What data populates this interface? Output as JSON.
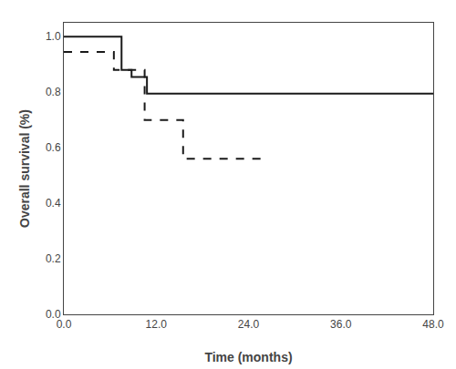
{
  "chart_data": {
    "type": "step",
    "xlabel": "Time (months)",
    "ylabel": "Overall survival (%)",
    "xlim": [
      0.0,
      48.0
    ],
    "ylim": [
      0.0,
      1.05
    ],
    "xticks": [
      {
        "value": 0.0,
        "label": "0.0"
      },
      {
        "value": 12.0,
        "label": "12.0"
      },
      {
        "value": 24.0,
        "label": "24.0"
      },
      {
        "value": 36.0,
        "label": "36.0"
      },
      {
        "value": 48.0,
        "label": "48.0"
      }
    ],
    "yticks": [
      {
        "value": 0.0,
        "label": "0.0"
      },
      0.2,
      0.4,
      0.6,
      0.8,
      {
        "value": 1.0,
        "label": "1.0"
      }
    ],
    "grid": false,
    "series": [
      {
        "color": "#1a1a1a",
        "line_style": "solid",
        "x": [
          0.0,
          7.5,
          7.5,
          8.8,
          8.8,
          10.8,
          10.8,
          48.0
        ],
        "values": [
          1.0,
          1.0,
          0.88,
          0.88,
          0.855,
          0.855,
          0.795,
          0.795
        ]
      },
      {
        "color": "#1a1a1a",
        "line_style": "dashed",
        "x": [
          0.0,
          6.5,
          6.5,
          10.5,
          10.5,
          15.5,
          15.5,
          26.0
        ],
        "values": [
          0.945,
          0.945,
          0.88,
          0.88,
          0.7,
          0.7,
          0.56,
          0.56
        ]
      }
    ]
  }
}
